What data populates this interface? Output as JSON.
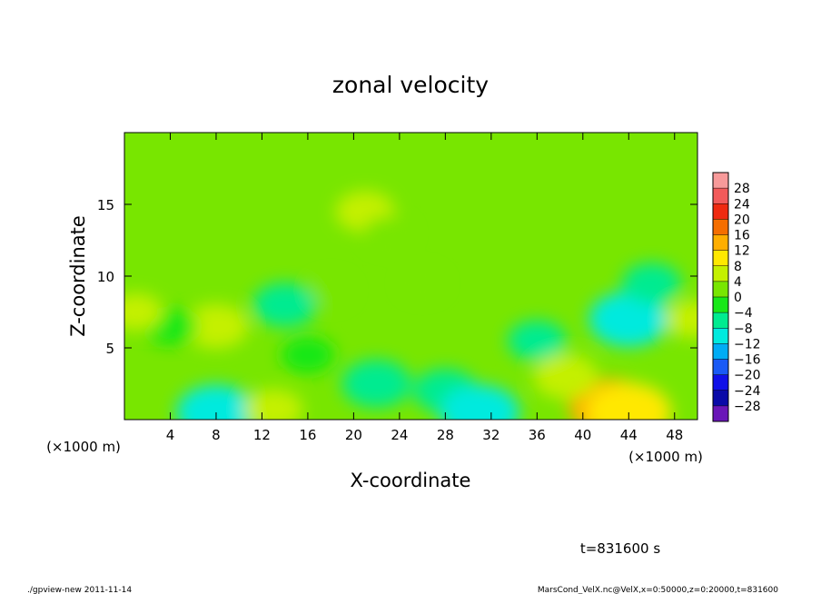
{
  "chart_data": {
    "type": "heatmap",
    "title": "zonal velocity",
    "xlabel": "X-coordinate",
    "ylabel": "Z-coordinate",
    "x_unit_label": "(×1000 m)",
    "x_unit_label_lower": "(×1000 m)",
    "xlim": [
      0,
      50
    ],
    "ylim": [
      0,
      20
    ],
    "x_ticks": [
      4,
      8,
      12,
      16,
      20,
      24,
      28,
      32,
      36,
      40,
      44,
      48
    ],
    "y_ticks": [
      5,
      10,
      15
    ],
    "colorbar": {
      "levels": [
        28,
        24,
        20,
        16,
        12,
        8,
        4,
        0,
        -4,
        -8,
        -12,
        -16,
        -20,
        -24,
        -28
      ],
      "tick_labels": [
        "28",
        "24",
        "20",
        "16",
        "12",
        "8",
        "4",
        "0",
        "−4",
        "−8",
        "−12",
        "−16",
        "−20",
        "−24",
        "−28"
      ],
      "bins": [
        {
          "from": 28,
          "to": 32,
          "color": "#f79a9a"
        },
        {
          "from": 24,
          "to": 28,
          "color": "#f25a5a"
        },
        {
          "from": 20,
          "to": 24,
          "color": "#ef2a10"
        },
        {
          "from": 16,
          "to": 20,
          "color": "#f56e00"
        },
        {
          "from": 12,
          "to": 16,
          "color": "#ffae00"
        },
        {
          "from": 8,
          "to": 12,
          "color": "#ffe800"
        },
        {
          "from": 4,
          "to": 8,
          "color": "#c4f000"
        },
        {
          "from": 0,
          "to": 4,
          "color": "#78e600"
        },
        {
          "from": -4,
          "to": 0,
          "color": "#18e818"
        },
        {
          "from": -8,
          "to": -4,
          "color": "#00eb90"
        },
        {
          "from": -12,
          "to": -8,
          "color": "#00eade"
        },
        {
          "from": -16,
          "to": -12,
          "color": "#00acf5"
        },
        {
          "from": -20,
          "to": -16,
          "color": "#1a5af5"
        },
        {
          "from": -24,
          "to": -20,
          "color": "#1010e8"
        },
        {
          "from": -28,
          "to": -24,
          "color": "#0a0aa8"
        },
        {
          "from": -32,
          "to": -28,
          "color": "#6a16b8"
        }
      ]
    },
    "background_value": 0,
    "features": [
      {
        "x": 8,
        "z": 6.5,
        "value": 6
      },
      {
        "x": 42.5,
        "z": 0.8,
        "value": 13
      },
      {
        "x": 44,
        "z": 0.5,
        "value": 10
      },
      {
        "x": 21,
        "z": 14.5,
        "value": 5
      },
      {
        "x": 23,
        "z": 13,
        "value": 3
      },
      {
        "x": 14,
        "z": 8,
        "value": -6
      },
      {
        "x": 16,
        "z": 4.5,
        "value": -4
      },
      {
        "x": 4,
        "z": 6.5,
        "value": -4
      },
      {
        "x": 22,
        "z": 2.5,
        "value": -7
      },
      {
        "x": 28,
        "z": 2,
        "value": -6
      },
      {
        "x": 31,
        "z": 0.5,
        "value": -9
      },
      {
        "x": 8,
        "z": 0.5,
        "value": -9
      },
      {
        "x": 44,
        "z": 7,
        "value": -9
      },
      {
        "x": 46,
        "z": 9.5,
        "value": -5
      },
      {
        "x": 36,
        "z": 5.5,
        "value": -5
      },
      {
        "x": 13,
        "z": 0.7,
        "value": 5
      },
      {
        "x": 38.5,
        "z": 3,
        "value": 6
      },
      {
        "x": 49.5,
        "z": 7,
        "value": 4
      },
      {
        "x": 1,
        "z": 7.5,
        "value": 4
      },
      {
        "x": 18,
        "z": 9,
        "value": 2
      },
      {
        "x": 26,
        "z": 9.5,
        "value": 2
      }
    ]
  },
  "annotations": {
    "time": "t=831600 s",
    "footer_left": "./gpview-new  2011-11-14",
    "footer_right": "MarsCond_VelX.nc@VelX,x=0:50000,z=0:20000,t=831600"
  }
}
